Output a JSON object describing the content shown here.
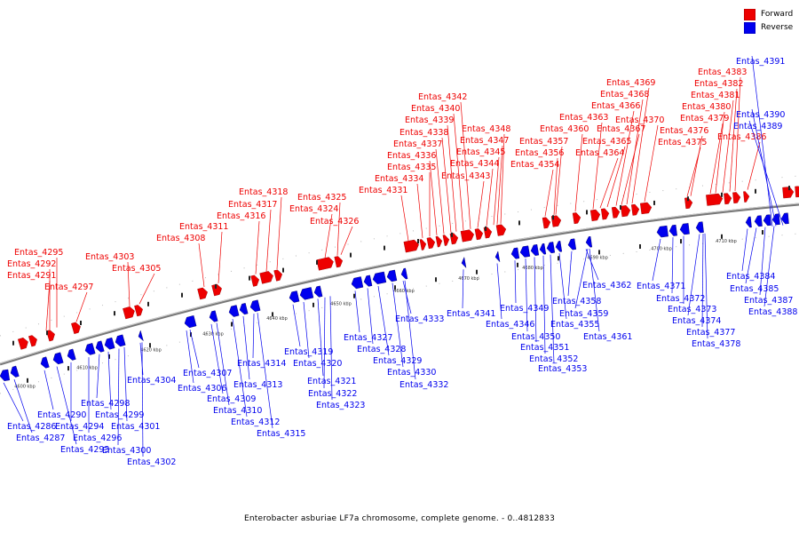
{
  "caption": "Enterobacter asburiae LF7a chromosome, complete genome. - 0..4812833",
  "legend": [
    {
      "label": "Forward",
      "color": "#ee0000",
      "icon": "red-square-icon"
    },
    {
      "label": "Reverse",
      "color": "#0000ee",
      "icon": "blue-square-icon"
    }
  ],
  "colors": {
    "forward": "#ee0000",
    "reverse": "#0000ee",
    "backbone": "#888888"
  },
  "scale_ticks": [
    "4600 kbp",
    "4610 kbp",
    "4620 kbp",
    "4630 kbp",
    "4640 kbp",
    "4650 kbp",
    "4660 kbp",
    "4670 kbp",
    "4680 kbp",
    "4690 kbp",
    "4700 kbp",
    "4710 kbp"
  ],
  "forward_genes": [
    "Entas_4291",
    "Entas_4292",
    "Entas_4295",
    "Entas_4297",
    "Entas_4303",
    "Entas_4305",
    "Entas_4308",
    "Entas_4311",
    "Entas_4316",
    "Entas_4317",
    "Entas_4318",
    "Entas_4324",
    "Entas_4325",
    "Entas_4326",
    "Entas_4331",
    "Entas_4334",
    "Entas_4335",
    "Entas_4336",
    "Entas_4337",
    "Entas_4338",
    "Entas_4339",
    "Entas_4340",
    "Entas_4342",
    "Entas_4343",
    "Entas_4344",
    "Entas_4345",
    "Entas_4347",
    "Entas_4348",
    "Entas_4354",
    "Entas_4356",
    "Entas_4357",
    "Entas_4360",
    "Entas_4363",
    "Entas_4364",
    "Entas_4365",
    "Entas_4366",
    "Entas_4367",
    "Entas_4368",
    "Entas_4369",
    "Entas_4370",
    "Entas_4375",
    "Entas_4376",
    "Entas_4379",
    "Entas_4380",
    "Entas_4381",
    "Entas_4382",
    "Entas_4383",
    "Entas_4386"
  ],
  "reverse_genes": [
    "Entas_4286",
    "Entas_4287",
    "Entas_4290",
    "Entas_4293",
    "Entas_4294",
    "Entas_4296",
    "Entas_4298",
    "Entas_4299",
    "Entas_4300",
    "Entas_4301",
    "Entas_4302",
    "Entas_4304",
    "Entas_4306",
    "Entas_4307",
    "Entas_4309",
    "Entas_4310",
    "Entas_4312",
    "Entas_4313",
    "Entas_4314",
    "Entas_4315",
    "Entas_4319",
    "Entas_4320",
    "Entas_4321",
    "Entas_4322",
    "Entas_4323",
    "Entas_4327",
    "Entas_4328",
    "Entas_4329",
    "Entas_4330",
    "Entas_4332",
    "Entas_4333",
    "Entas_4341",
    "Entas_4346",
    "Entas_4349",
    "Entas_4350",
    "Entas_4351",
    "Entas_4352",
    "Entas_4353",
    "Entas_4355",
    "Entas_4358",
    "Entas_4359",
    "Entas_4361",
    "Entas_4362",
    "Entas_4371",
    "Entas_4372",
    "Entas_4373",
    "Entas_4374",
    "Entas_4377",
    "Entas_4378",
    "Entas_4384",
    "Entas_4385",
    "Entas_4387",
    "Entas_4388",
    "Entas_4389",
    "Entas_4390",
    "Entas_4391"
  ]
}
